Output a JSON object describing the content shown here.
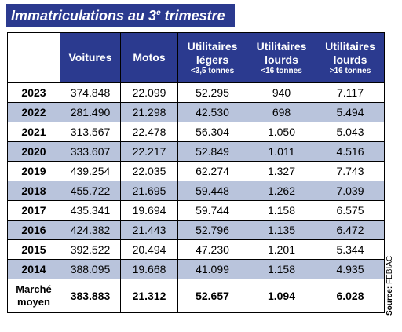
{
  "title": {
    "text": "Immatriculations au 3",
    "sup": "e",
    "rest": " trimestre"
  },
  "headers": {
    "voitures": "Voitures",
    "motos": "Motos",
    "util_legers": {
      "line1": "Utilitaires",
      "line2": "légers",
      "sub": "<3,5 tonnes"
    },
    "util_lourds_16": {
      "line1": "Utilitaires",
      "line2": "lourds",
      "sub": "<16 tonnes"
    },
    "util_lourds_gt16": {
      "line1": "Utilitaires",
      "line2": "lourds",
      "sub": ">16 tonnes"
    }
  },
  "rows": [
    {
      "year": "2023",
      "voitures": "374.848",
      "motos": "22.099",
      "legers": "52.295",
      "lourds16": "940",
      "lourds_gt16": "7.117"
    },
    {
      "year": "2022",
      "voitures": "281.490",
      "motos": "21.298",
      "legers": "42.530",
      "lourds16": "698",
      "lourds_gt16": "5.494"
    },
    {
      "year": "2021",
      "voitures": "313.567",
      "motos": "22.478",
      "legers": "56.304",
      "lourds16": "1.050",
      "lourds_gt16": "5.043"
    },
    {
      "year": "2020",
      "voitures": "333.607",
      "motos": "22.217",
      "legers": "52.849",
      "lourds16": "1.011",
      "lourds_gt16": "4.516"
    },
    {
      "year": "2019",
      "voitures": "439.254",
      "motos": "22.035",
      "legers": "62.274",
      "lourds16": "1.327",
      "lourds_gt16": "7.743"
    },
    {
      "year": "2018",
      "voitures": "455.722",
      "motos": "21.695",
      "legers": "59.448",
      "lourds16": "1.262",
      "lourds_gt16": "7.039"
    },
    {
      "year": "2017",
      "voitures": "435.341",
      "motos": "19.694",
      "legers": "59.744",
      "lourds16": "1.158",
      "lourds_gt16": "6.575"
    },
    {
      "year": "2016",
      "voitures": "424.382",
      "motos": "21.443",
      "legers": "52.796",
      "lourds16": "1.135",
      "lourds_gt16": "6.472"
    },
    {
      "year": "2015",
      "voitures": "392.522",
      "motos": "20.494",
      "legers": "47.230",
      "lourds16": "1.201",
      "lourds_gt16": "5.344"
    },
    {
      "year": "2014",
      "voitures": "388.095",
      "motos": "19.668",
      "legers": "41.099",
      "lourds16": "1.158",
      "lourds_gt16": "4.935"
    }
  ],
  "average": {
    "line1": "Marché",
    "line2": "moyen",
    "voitures": "383.883",
    "motos": "21.312",
    "legers": "52.657",
    "lourds16": "1.094",
    "lourds_gt16": "6.028"
  },
  "source": {
    "label": "Source:",
    "name": " FEBIAC"
  },
  "colors": {
    "header_blue": "#2b3a8f",
    "row_shade": "#b9c4dc"
  }
}
